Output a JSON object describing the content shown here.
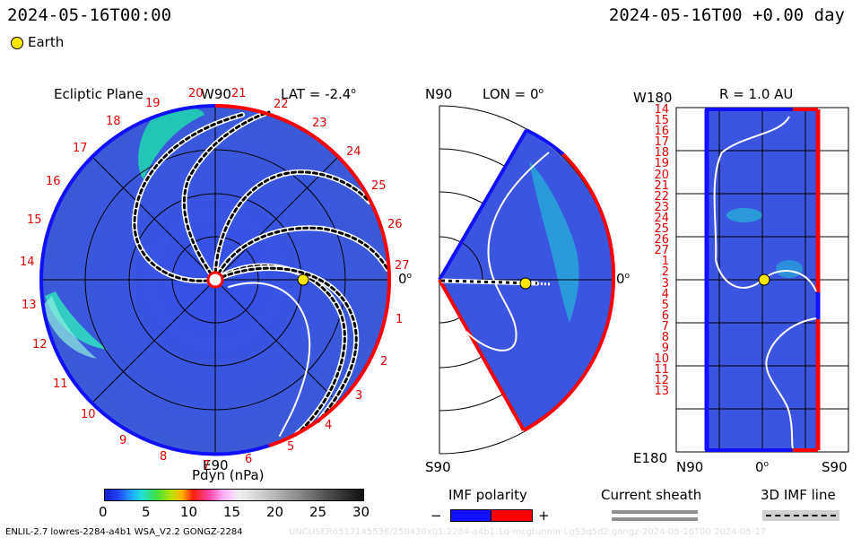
{
  "header": {
    "time_left": "2024-05-16T00:00",
    "time_right": "2024-05-16T00 +0.00 day",
    "legend_label": "Earth"
  },
  "ecliptic_panel": {
    "title": "Ecliptic Plane",
    "lat_label": "LAT = -2.4",
    "top_label": "W90",
    "bottom_label": "E90",
    "right_label": "0",
    "rotation_labels": [
      "20",
      "21",
      "22",
      "23",
      "24",
      "25",
      "26",
      "27",
      "1",
      "2",
      "3",
      "4",
      "5",
      "6",
      "7",
      "8",
      "9",
      "10",
      "11",
      "12",
      "13",
      "14",
      "15",
      "16",
      "17",
      "18",
      "19"
    ]
  },
  "meridional_panel": {
    "top_label": "N90",
    "lon_label": "LON = 0",
    "bottom_label": "S90",
    "right_label": "0"
  },
  "sphere_panel": {
    "top_left_label": "W180",
    "r_label": "R = 1.0 AU",
    "bottom_left_label": "E180",
    "bottom_labels": [
      "N90",
      "0",
      "S90"
    ],
    "row_labels": [
      "14",
      "15",
      "16",
      "17",
      "18",
      "19",
      "20",
      "21",
      "22",
      "23",
      "24",
      "25",
      "26",
      "27",
      "1",
      "2",
      "3",
      "4",
      "5",
      "6",
      "7",
      "8",
      "9",
      "10",
      "11",
      "12",
      "13"
    ]
  },
  "colorbar": {
    "label": "Pdyn (nPa)",
    "ticks": [
      "0",
      "5",
      "10",
      "15",
      "20",
      "25",
      "30"
    ]
  },
  "legend": {
    "imf_title": "IMF polarity",
    "minus": "−",
    "plus": "+",
    "sheath_title": "Current sheath",
    "imf_line_title": "3D IMF line"
  },
  "footer": {
    "left": "ENLIL-2.7 lowres-2284-a4b1 WSA_V2.2 GONGZ-2284",
    "right": "UNCUSER6517145536/258430x01.2284-a4b1.1d-mcgtunnin-LgS3q5d2.gongz-2024-05-16T00   2024-05-17"
  },
  "colors": {
    "blue_polarity": "#1010ff",
    "red_polarity": "#ff0000",
    "background_field": "#3a4fe0",
    "dense": "#20d8b0",
    "earth": "#ffe600"
  }
}
